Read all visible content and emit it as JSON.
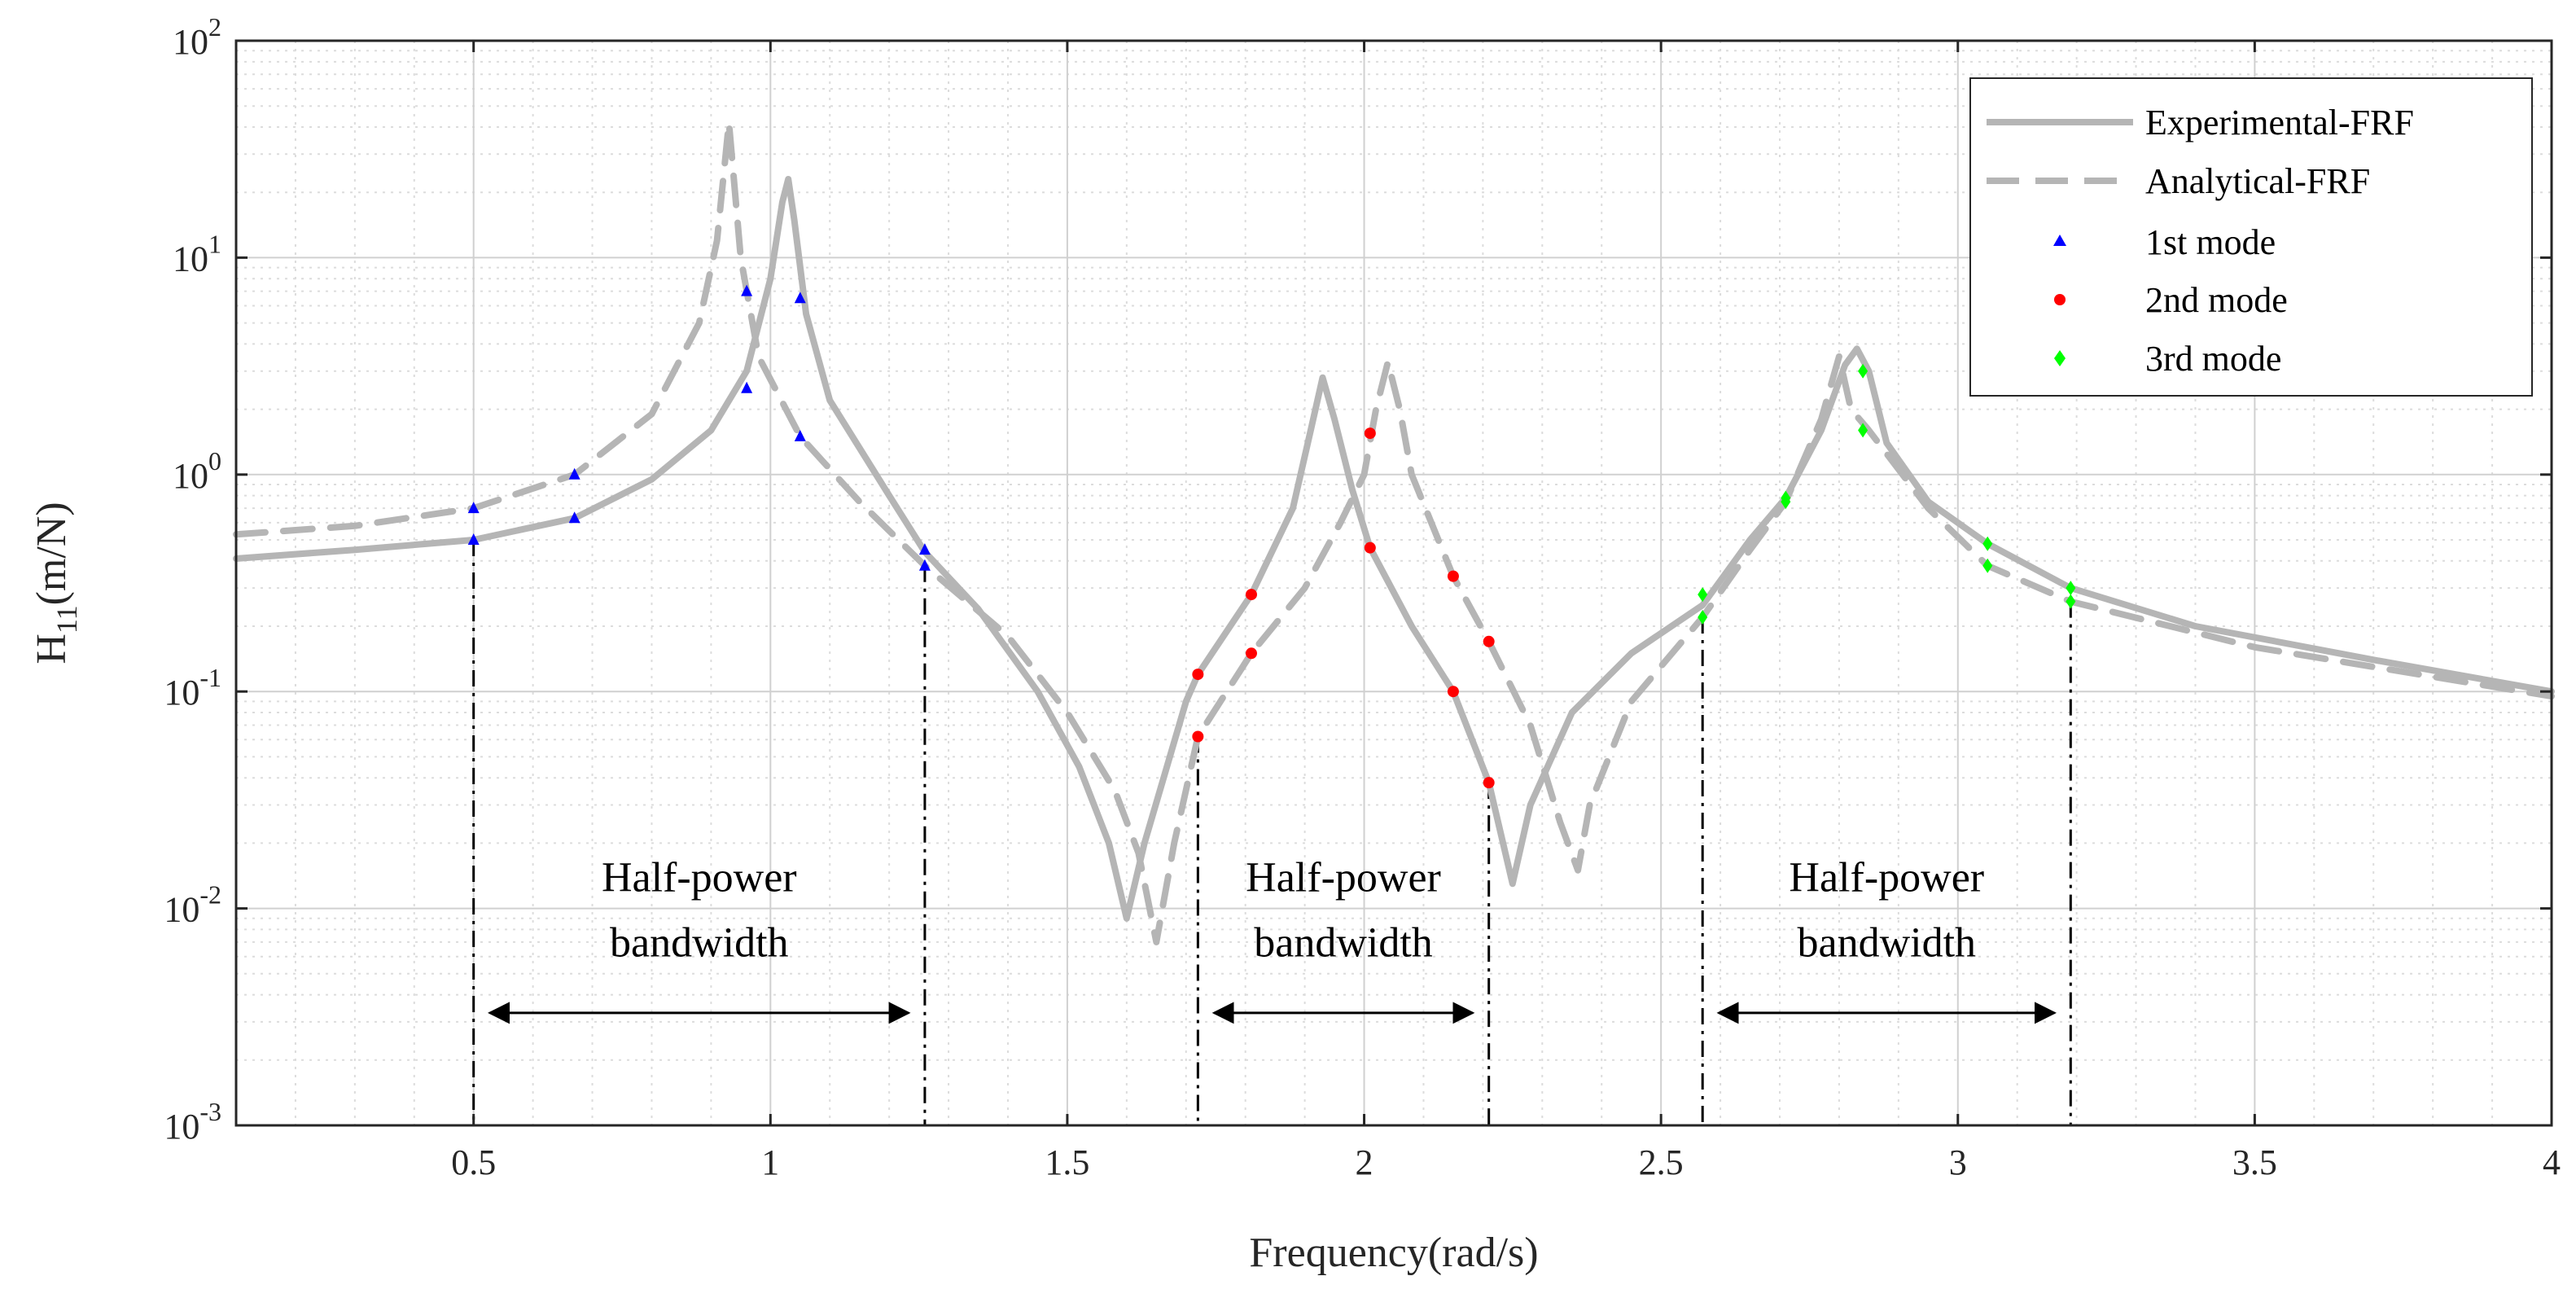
{
  "chart_data": {
    "type": "line",
    "yscale": "log",
    "xlabel": "Frequency(rad/s)",
    "ylabel": {
      "base": "H",
      "sub": "11",
      "rest": "(m/N)"
    },
    "xlim": [
      0.1,
      4
    ],
    "ylim": [
      0.001,
      100
    ],
    "x_ticks": [
      0.5,
      1,
      1.5,
      2,
      2.5,
      3,
      3.5,
      4
    ],
    "x_tick_labels": [
      "0.5",
      "1",
      "1.5",
      "2",
      "2.5",
      "3",
      "3.5",
      "4"
    ],
    "y_ticks": [
      0.001,
      0.01,
      0.1,
      1,
      10,
      100
    ],
    "y_tick_labels": [
      {
        "base": "10",
        "exp": "-3"
      },
      {
        "base": "10",
        "exp": "-2"
      },
      {
        "base": "10",
        "exp": "-1"
      },
      {
        "base": "10",
        "exp": "0"
      },
      {
        "base": "10",
        "exp": "1"
      },
      {
        "base": "10",
        "exp": "2"
      }
    ],
    "grid": true,
    "minor_grid": true,
    "legend": {
      "position": "top-right",
      "entries": [
        {
          "label": "Experimental-FRF",
          "style": "solid-line",
          "color": "#b5b5b5"
        },
        {
          "label": "Analytical-FRF",
          "style": "dashed-line",
          "color": "#b5b5b5"
        },
        {
          "label": "1st mode",
          "style": "triangle-marker",
          "color": "#0000ff"
        },
        {
          "label": "2nd mode",
          "style": "circle-marker",
          "color": "#ff0000"
        },
        {
          "label": "3rd mode",
          "style": "diamond-marker",
          "color": "#00ff00"
        }
      ]
    },
    "series": [
      {
        "name": "Experimental-FRF",
        "style": "solid",
        "color": "#b5b5b5",
        "points": [
          [
            0.1,
            0.41
          ],
          [
            0.3,
            0.45
          ],
          [
            0.5,
            0.5
          ],
          [
            0.67,
            0.63
          ],
          [
            0.8,
            0.95
          ],
          [
            0.9,
            1.6
          ],
          [
            0.96,
            3.0
          ],
          [
            1.0,
            8.0
          ],
          [
            1.02,
            18.0
          ],
          [
            1.03,
            23.0
          ],
          [
            1.04,
            15.0
          ],
          [
            1.06,
            5.5
          ],
          [
            1.1,
            2.2
          ],
          [
            1.2,
            0.8
          ],
          [
            1.26,
            0.44
          ],
          [
            1.35,
            0.24
          ],
          [
            1.45,
            0.1
          ],
          [
            1.52,
            0.045
          ],
          [
            1.57,
            0.02
          ],
          [
            1.6,
            0.009
          ],
          [
            1.63,
            0.02
          ],
          [
            1.7,
            0.09
          ],
          [
            1.72,
            0.12
          ],
          [
            1.81,
            0.28
          ],
          [
            1.88,
            0.7
          ],
          [
            1.91,
            1.6
          ],
          [
            1.93,
            2.8
          ],
          [
            1.95,
            1.8
          ],
          [
            1.98,
            0.85
          ],
          [
            2.01,
            0.46
          ],
          [
            2.08,
            0.2
          ],
          [
            2.15,
            0.1
          ],
          [
            2.21,
            0.038
          ],
          [
            2.25,
            0.013
          ],
          [
            2.28,
            0.03
          ],
          [
            2.35,
            0.08
          ],
          [
            2.45,
            0.15
          ],
          [
            2.57,
            0.25
          ],
          [
            2.65,
            0.5
          ],
          [
            2.71,
            0.78
          ],
          [
            2.77,
            1.6
          ],
          [
            2.81,
            3.2
          ],
          [
            2.83,
            3.8
          ],
          [
            2.85,
            3.0
          ],
          [
            2.88,
            1.4
          ],
          [
            2.95,
            0.75
          ],
          [
            3.05,
            0.48
          ],
          [
            3.19,
            0.3
          ],
          [
            3.4,
            0.2
          ],
          [
            3.7,
            0.14
          ],
          [
            4.0,
            0.1
          ]
        ]
      },
      {
        "name": "Analytical-FRF",
        "style": "dashed",
        "color": "#b5b5b5",
        "points": [
          [
            0.1,
            0.53
          ],
          [
            0.3,
            0.58
          ],
          [
            0.5,
            0.7
          ],
          [
            0.67,
            1.0
          ],
          [
            0.8,
            1.9
          ],
          [
            0.88,
            5.0
          ],
          [
            0.91,
            12.0
          ],
          [
            0.93,
            42.0
          ],
          [
            0.95,
            10.0
          ],
          [
            0.98,
            3.5
          ],
          [
            1.05,
            1.5
          ],
          [
            1.15,
            0.75
          ],
          [
            1.26,
            0.38
          ],
          [
            1.4,
            0.18
          ],
          [
            1.5,
            0.08
          ],
          [
            1.58,
            0.035
          ],
          [
            1.62,
            0.018
          ],
          [
            1.65,
            0.007
          ],
          [
            1.68,
            0.02
          ],
          [
            1.72,
            0.062
          ],
          [
            1.81,
            0.15
          ],
          [
            1.9,
            0.3
          ],
          [
            1.96,
            0.6
          ],
          [
            2.0,
            1.0
          ],
          [
            2.02,
            2.0
          ],
          [
            2.04,
            3.3
          ],
          [
            2.06,
            2.0
          ],
          [
            2.08,
            1.0
          ],
          [
            2.15,
            0.34
          ],
          [
            2.21,
            0.17
          ],
          [
            2.28,
            0.07
          ],
          [
            2.33,
            0.025
          ],
          [
            2.36,
            0.015
          ],
          [
            2.38,
            0.03
          ],
          [
            2.45,
            0.09
          ],
          [
            2.57,
            0.22
          ],
          [
            2.65,
            0.45
          ],
          [
            2.71,
            0.75
          ],
          [
            2.77,
            1.8
          ],
          [
            2.8,
            3.5
          ],
          [
            2.82,
            2.0
          ],
          [
            2.85,
            1.6
          ],
          [
            2.95,
            0.7
          ],
          [
            3.05,
            0.38
          ],
          [
            3.19,
            0.26
          ],
          [
            3.5,
            0.16
          ],
          [
            4.0,
            0.095
          ]
        ]
      }
    ],
    "markers": [
      {
        "name": "1st mode",
        "shape": "triangle",
        "color": "#0000ff",
        "points": [
          [
            0.5,
            0.5
          ],
          [
            0.5,
            0.7
          ],
          [
            0.67,
            0.63
          ],
          [
            0.67,
            1.0
          ],
          [
            0.96,
            2.5
          ],
          [
            0.96,
            7.0
          ],
          [
            1.05,
            6.5
          ],
          [
            1.05,
            1.5
          ],
          [
            1.26,
            0.38
          ],
          [
            1.26,
            0.45
          ]
        ]
      },
      {
        "name": "2nd mode",
        "shape": "circle",
        "color": "#ff0000",
        "points": [
          [
            1.72,
            0.062
          ],
          [
            1.72,
            0.12
          ],
          [
            1.81,
            0.15
          ],
          [
            1.81,
            0.28
          ],
          [
            2.01,
            1.55
          ],
          [
            2.01,
            0.46
          ],
          [
            2.15,
            0.34
          ],
          [
            2.15,
            0.1
          ],
          [
            2.21,
            0.17
          ],
          [
            2.21,
            0.038
          ]
        ]
      },
      {
        "name": "3rd mode",
        "shape": "diamond",
        "color": "#00ff00",
        "points": [
          [
            2.57,
            0.22
          ],
          [
            2.57,
            0.28
          ],
          [
            2.71,
            0.75
          ],
          [
            2.71,
            0.78
          ],
          [
            2.84,
            3.0
          ],
          [
            2.84,
            1.6
          ],
          [
            3.05,
            0.48
          ],
          [
            3.05,
            0.38
          ],
          [
            3.19,
            0.3
          ],
          [
            3.19,
            0.26
          ]
        ]
      }
    ],
    "vlines": [
      {
        "x": 0.5,
        "y_top": 0.5
      },
      {
        "x": 1.26,
        "y_top": 0.38
      },
      {
        "x": 1.72,
        "y_top": 0.062
      },
      {
        "x": 2.21,
        "y_top": 0.038
      },
      {
        "x": 2.57,
        "y_top": 0.22
      },
      {
        "x": 3.19,
        "y_top": 0.26
      }
    ],
    "annotations": [
      {
        "text_line1": "Half-power",
        "text_line2": "bandwidth",
        "x_from": 0.5,
        "x_to": 1.26,
        "y": 0.0033,
        "text_y1": 0.012,
        "text_y2": 0.006
      },
      {
        "text_line1": "Half-power",
        "text_line2": "bandwidth",
        "x_from": 1.72,
        "x_to": 2.21,
        "y": 0.0033,
        "text_y1": 0.012,
        "text_y2": 0.006
      },
      {
        "text_line1": "Half-power",
        "text_line2": "bandwidth",
        "x_from": 2.57,
        "x_to": 3.19,
        "y": 0.0033,
        "text_y1": 0.012,
        "text_y2": 0.006
      }
    ]
  }
}
